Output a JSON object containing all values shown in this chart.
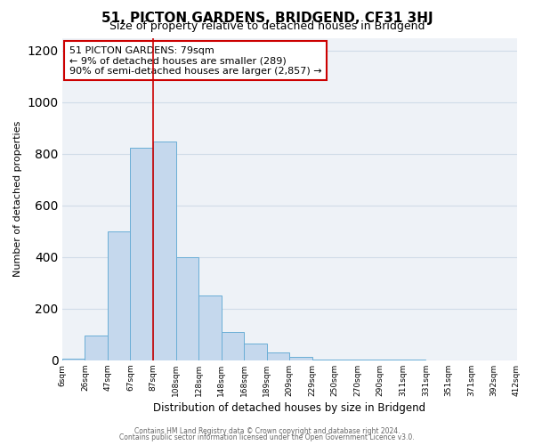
{
  "title": "51, PICTON GARDENS, BRIDGEND, CF31 3HJ",
  "subtitle": "Size of property relative to detached houses in Bridgend",
  "xlabel": "Distribution of detached houses by size in Bridgend",
  "ylabel": "Number of detached properties",
  "bin_labels": [
    "6sqm",
    "26sqm",
    "47sqm",
    "67sqm",
    "87sqm",
    "108sqm",
    "128sqm",
    "148sqm",
    "168sqm",
    "189sqm",
    "209sqm",
    "229sqm",
    "250sqm",
    "270sqm",
    "290sqm",
    "311sqm",
    "331sqm",
    "351sqm",
    "371sqm",
    "392sqm",
    "412sqm"
  ],
  "bar_values": [
    5,
    95,
    500,
    825,
    848,
    400,
    250,
    110,
    65,
    30,
    13,
    3,
    3,
    1,
    1,
    1,
    0,
    0,
    0,
    0
  ],
  "bar_color": "#c5d8ed",
  "bar_edge_color": "#6aaed6",
  "grid_color": "#d0dce8",
  "bg_color": "#eef2f7",
  "vline_x": 4,
  "vline_color": "#cc0000",
  "annotation_text": "51 PICTON GARDENS: 79sqm\n← 9% of detached houses are smaller (289)\n90% of semi-detached houses are larger (2,857) →",
  "annotation_box_color": "#ffffff",
  "annotation_border_color": "#cc0000",
  "footer_line1": "Contains HM Land Registry data © Crown copyright and database right 2024.",
  "footer_line2": "Contains public sector information licensed under the Open Government Licence v3.0.",
  "ylim": [
    0,
    1250
  ],
  "yticks": [
    0,
    200,
    400,
    600,
    800,
    1000,
    1200
  ]
}
